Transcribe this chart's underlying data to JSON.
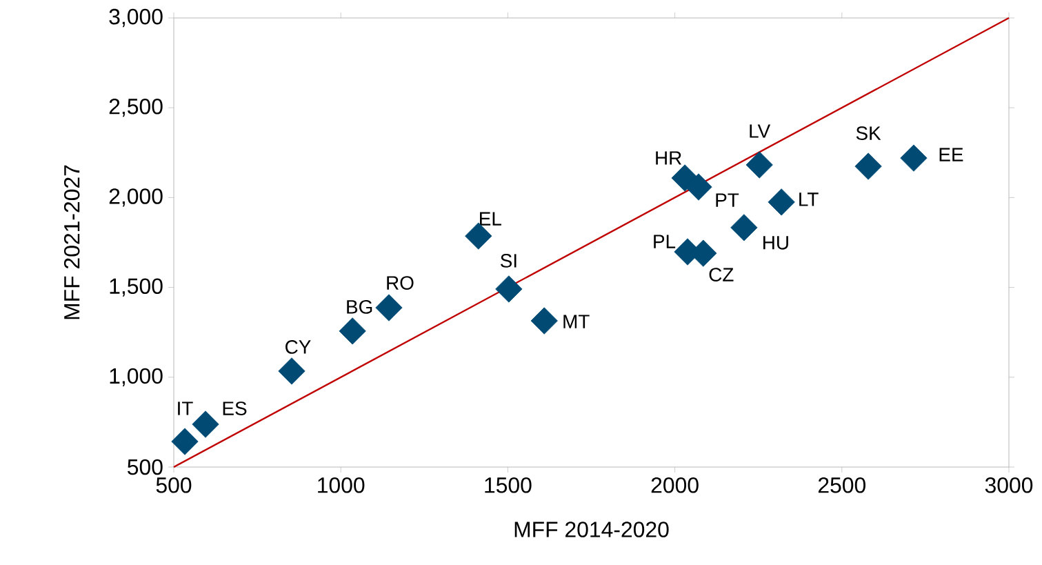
{
  "chart_data": {
    "type": "scatter",
    "xlabel": "MFF 2014-2020",
    "ylabel": "MFF 2021-2027",
    "xlim": [
      500,
      3000
    ],
    "ylim": [
      500,
      3000
    ],
    "xticks": [
      500,
      1000,
      1500,
      2000,
      2500,
      3000
    ],
    "yticks": [
      {
        "value": 500,
        "label": "500"
      },
      {
        "value": 1000,
        "label": "1,000"
      },
      {
        "value": 1500,
        "label": "1,500"
      },
      {
        "value": 2000,
        "label": "2,000"
      },
      {
        "value": 2500,
        "label": "2,500"
      },
      {
        "value": 3000,
        "label": "3,000"
      }
    ],
    "grid": false,
    "series": [
      {
        "type": "scatter",
        "color": "#004a74",
        "marker": "diamond",
        "x": [
          533,
          595,
          853,
          1035,
          1144,
          1412,
          1503,
          1609,
          2030,
          2071,
          2038,
          2085,
          2253,
          2319,
          2207,
          2579,
          2715
        ],
        "values": [
          642,
          738,
          1034,
          1257,
          1387,
          1786,
          1491,
          1314,
          2109,
          2059,
          1698,
          1690,
          2182,
          1975,
          1833,
          2174,
          2220
        ]
      },
      {
        "type": "line",
        "color": "#c00000",
        "marker": "none",
        "x": [
          500,
          3000
        ],
        "values": [
          500,
          3000
        ]
      }
    ],
    "annotations": [
      {
        "text": "IT",
        "x": 533,
        "y": 642
      },
      {
        "text": "ES",
        "x": 595,
        "y": 738
      },
      {
        "text": "CY",
        "x": 853,
        "y": 1034
      },
      {
        "text": "BG",
        "x": 1035,
        "y": 1257
      },
      {
        "text": "RO",
        "x": 1144,
        "y": 1387
      },
      {
        "text": "EL",
        "x": 1412,
        "y": 1786
      },
      {
        "text": "SI",
        "x": 1503,
        "y": 1491
      },
      {
        "text": "MT",
        "x": 1609,
        "y": 1314
      },
      {
        "text": "HR",
        "x": 2030,
        "y": 2109
      },
      {
        "text": "PT",
        "x": 2071,
        "y": 2059
      },
      {
        "text": "PL",
        "x": 2038,
        "y": 1698
      },
      {
        "text": "CZ",
        "x": 2085,
        "y": 1690
      },
      {
        "text": "LV",
        "x": 2253,
        "y": 2182
      },
      {
        "text": "LT",
        "x": 2319,
        "y": 1975
      },
      {
        "text": "HU",
        "x": 2207,
        "y": 1833
      },
      {
        "text": "SK",
        "x": 2579,
        "y": 2174
      },
      {
        "text": "EE",
        "x": 2715,
        "y": 2220
      }
    ]
  }
}
